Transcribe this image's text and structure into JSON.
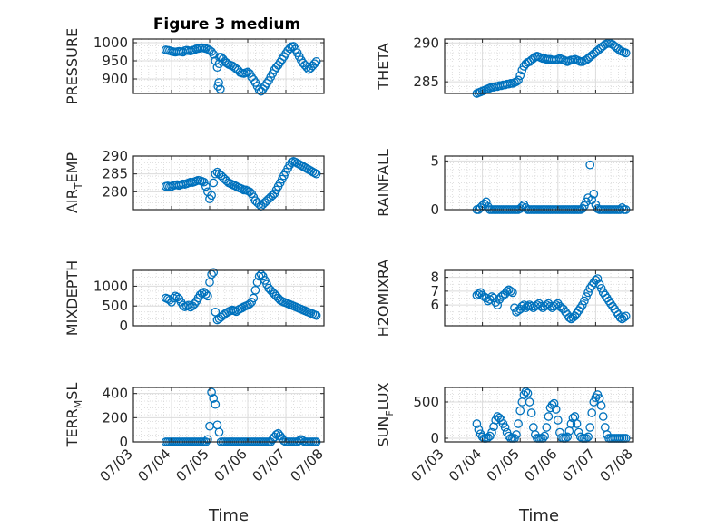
{
  "title": "Figure 3 medium",
  "marker_color": "#0072BD",
  "chart_data": [
    {
      "type": "scatter",
      "ylabel": "PRESSURE",
      "ylim": [
        860,
        1010
      ],
      "yticks": [
        900,
        950,
        1000
      ],
      "xlim": [
        0,
        5
      ],
      "grid": true,
      "x": [
        0.85,
        0.9,
        0.95,
        1,
        1.05,
        1.1,
        1.15,
        1.2,
        1.25,
        1.3,
        1.35,
        1.4,
        1.45,
        1.5,
        1.55,
        1.6,
        1.65,
        1.7,
        1.75,
        1.8,
        1.85,
        1.9,
        1.95,
        2,
        2.05,
        2.1,
        2.15,
        2.2,
        2.25,
        2.3,
        2.35,
        2.4,
        2.45,
        2.5,
        2.55,
        2.6,
        2.65,
        2.7,
        2.75,
        2.8,
        2.85,
        2.9,
        2.95,
        3,
        3.05,
        3.1,
        3.15,
        3.2,
        3.25,
        3.3,
        3.35,
        3.4,
        3.45,
        3.5,
        3.55,
        3.6,
        3.65,
        3.7,
        3.75,
        3.8,
        3.85,
        3.9,
        3.95,
        4,
        4.05,
        4.1,
        4.15,
        4.2,
        4.25,
        4.3,
        4.35,
        4.4,
        4.45,
        4.5,
        4.55,
        4.6,
        4.65,
        4.7,
        4.75,
        4.8,
        2.22,
        2.24,
        2.26,
        2.28
      ],
      "y": [
        980,
        979,
        978,
        976,
        975,
        974,
        975,
        976,
        975,
        974,
        978,
        979,
        978,
        977,
        979,
        980,
        983,
        984,
        985,
        986,
        985,
        984,
        982,
        979,
        975,
        968,
        950,
        932,
        942,
        960,
        955,
        948,
        944,
        940,
        938,
        936,
        932,
        928,
        924,
        918,
        916,
        915,
        917,
        919,
        915,
        905,
        898,
        890,
        880,
        870,
        866,
        872,
        880,
        888,
        895,
        905,
        915,
        925,
        932,
        938,
        946,
        954,
        962,
        970,
        978,
        984,
        989,
        990,
        982,
        972,
        962,
        952,
        944,
        938,
        932,
        926,
        930,
        936,
        942,
        948,
        880,
        890,
        960,
        872
      ],
      "xticks_note": "07/03..07/08"
    },
    {
      "type": "scatter",
      "ylabel": "THETA",
      "ylim": [
        283.5,
        290.5
      ],
      "yticks": [
        285,
        290
      ],
      "xlim": [
        0,
        5
      ],
      "grid": true,
      "x": [
        0.85,
        0.9,
        0.95,
        1,
        1.05,
        1.1,
        1.15,
        1.2,
        1.25,
        1.3,
        1.35,
        1.4,
        1.45,
        1.5,
        1.55,
        1.6,
        1.65,
        1.7,
        1.75,
        1.8,
        1.85,
        1.9,
        1.95,
        2,
        2.05,
        2.1,
        2.15,
        2.2,
        2.25,
        2.3,
        2.35,
        2.4,
        2.45,
        2.5,
        2.55,
        2.6,
        2.65,
        2.7,
        2.75,
        2.8,
        2.85,
        2.9,
        2.95,
        3,
        3.05,
        3.1,
        3.15,
        3.2,
        3.25,
        3.3,
        3.35,
        3.4,
        3.45,
        3.5,
        3.55,
        3.6,
        3.65,
        3.7,
        3.75,
        3.8,
        3.85,
        3.9,
        3.95,
        4,
        4.05,
        4.1,
        4.15,
        4.2,
        4.25,
        4.3,
        4.35,
        4.4,
        4.45,
        4.5,
        4.55,
        4.6,
        4.65,
        4.7,
        4.75,
        4.8
      ],
      "y": [
        283.5,
        283.6,
        283.7,
        283.8,
        283.9,
        284,
        284.1,
        284.2,
        284.3,
        284.3,
        284.4,
        284.4,
        284.5,
        284.5,
        284.6,
        284.6,
        284.7,
        284.7,
        284.8,
        284.8,
        284.9,
        285,
        285.2,
        285.8,
        286.5,
        287,
        287.3,
        287.5,
        287.6,
        287.8,
        288,
        288.2,
        288.3,
        288.2,
        288.1,
        288,
        288,
        287.9,
        287.9,
        287.9,
        287.8,
        287.8,
        287.8,
        287.9,
        288,
        287.9,
        287.8,
        287.7,
        287.6,
        287.7,
        287.8,
        287.8,
        287.9,
        287.8,
        287.7,
        287.6,
        287.6,
        287.7,
        287.8,
        288,
        288.2,
        288.4,
        288.6,
        288.8,
        289,
        289.2,
        289.4,
        289.6,
        289.8,
        289.9,
        290,
        289.9,
        289.8,
        289.6,
        289.4,
        289.2,
        289,
        288.9,
        288.8,
        288.7
      ]
    },
    {
      "type": "scatter",
      "ylabel": "AIR_TEMP",
      "ylabel_main": "AIR",
      "ylabel_sub": "T",
      "ylabel_rest": "EMP",
      "ylim": [
        275,
        290
      ],
      "yticks": [
        280,
        285,
        290
      ],
      "xlim": [
        0,
        5
      ],
      "grid": true,
      "x": [
        0.85,
        0.9,
        0.95,
        1,
        1.05,
        1.1,
        1.15,
        1.2,
        1.25,
        1.3,
        1.35,
        1.4,
        1.45,
        1.5,
        1.55,
        1.6,
        1.65,
        1.7,
        1.75,
        1.8,
        1.85,
        1.9,
        1.95,
        2,
        2.05,
        2.1,
        2.15,
        2.2,
        2.25,
        2.3,
        2.35,
        2.4,
        2.45,
        2.5,
        2.55,
        2.6,
        2.65,
        2.7,
        2.75,
        2.8,
        2.85,
        2.9,
        2.95,
        3,
        3.05,
        3.1,
        3.15,
        3.2,
        3.25,
        3.3,
        3.35,
        3.4,
        3.45,
        3.5,
        3.55,
        3.6,
        3.65,
        3.7,
        3.75,
        3.8,
        3.85,
        3.9,
        3.95,
        4,
        4.05,
        4.1,
        4.15,
        4.2,
        4.25,
        4.3,
        4.35,
        4.4,
        4.45,
        4.5,
        4.55,
        4.6,
        4.65,
        4.7,
        4.75,
        4.8
      ],
      "y": [
        281.5,
        281.6,
        281.4,
        281.5,
        281.8,
        281.9,
        282,
        281.8,
        282,
        282.2,
        282.1,
        282.3,
        282.5,
        282.7,
        282.6,
        282.8,
        283,
        283.2,
        283.1,
        282.9,
        282.7,
        281.5,
        280,
        278,
        279,
        282.5,
        285,
        285.5,
        285,
        284.5,
        284,
        283.5,
        283,
        282.5,
        282.3,
        282,
        281.8,
        281.5,
        281.2,
        281,
        280.8,
        280.5,
        280.5,
        280.3,
        280,
        279.5,
        278.5,
        277.5,
        277,
        276.5,
        276,
        276.5,
        277,
        277.5,
        278,
        278.5,
        279,
        279.5,
        280.5,
        281.5,
        282.5,
        283.5,
        284.5,
        285.5,
        286.5,
        287.5,
        288.2,
        288.5,
        288.3,
        288,
        287.7,
        287.4,
        287.1,
        286.8,
        286.5,
        286.2,
        285.9,
        285.6,
        285.3,
        285
      ]
    },
    {
      "type": "scatter",
      "ylabel": "RAINFALL",
      "ylim": [
        0,
        5.5
      ],
      "yticks": [
        0,
        5
      ],
      "xlim": [
        0,
        5
      ],
      "grid": true,
      "x": [
        0.85,
        0.9,
        0.95,
        1,
        1.05,
        1.1,
        1.15,
        1.2,
        1.25,
        1.3,
        1.35,
        1.4,
        1.45,
        1.5,
        1.55,
        1.6,
        1.65,
        1.7,
        1.75,
        1.8,
        1.85,
        1.9,
        1.95,
        2,
        2.05,
        2.1,
        2.15,
        2.2,
        2.25,
        2.3,
        2.35,
        2.4,
        2.45,
        2.5,
        2.55,
        2.6,
        2.65,
        2.7,
        2.75,
        2.8,
        2.85,
        2.9,
        2.95,
        3,
        3.05,
        3.1,
        3.15,
        3.2,
        3.25,
        3.3,
        3.35,
        3.4,
        3.45,
        3.5,
        3.55,
        3.6,
        3.65,
        3.7,
        3.75,
        3.8,
        3.85,
        3.9,
        3.95,
        4,
        4.05,
        4.1,
        4.15,
        4.2,
        4.25,
        4.3,
        4.35,
        4.4,
        4.45,
        4.5,
        4.55,
        4.6,
        4.65,
        4.7,
        4.75,
        4.8
      ],
      "y": [
        0,
        0,
        0.2,
        0.4,
        0.6,
        0.8,
        0.3,
        0,
        0,
        0,
        0,
        0,
        0,
        0,
        0,
        0,
        0,
        0,
        0,
        0,
        0,
        0,
        0,
        0.1,
        0.3,
        0.5,
        0.2,
        0,
        0,
        0,
        0,
        0,
        0,
        0,
        0,
        0,
        0,
        0,
        0,
        0,
        0,
        0,
        0,
        0,
        0,
        0,
        0,
        0,
        0,
        0,
        0,
        0,
        0,
        0,
        0,
        0,
        0.1,
        0.4,
        0.8,
        1.2,
        4.6,
        1,
        1.6,
        0.5,
        0.1,
        0,
        0,
        0,
        0,
        0,
        0,
        0,
        0,
        0,
        0,
        0,
        0,
        0.2,
        0,
        0
      ]
    },
    {
      "type": "scatter",
      "ylabel": "MIXDEPTH",
      "ylim": [
        0,
        1400
      ],
      "yticks": [
        0,
        500,
        1000
      ],
      "xlim": [
        0,
        5
      ],
      "grid": true,
      "x": [
        0.85,
        0.9,
        0.95,
        1,
        1.05,
        1.1,
        1.15,
        1.2,
        1.25,
        1.3,
        1.35,
        1.4,
        1.45,
        1.5,
        1.55,
        1.6,
        1.65,
        1.7,
        1.75,
        1.8,
        1.85,
        1.9,
        1.95,
        2,
        2.05,
        2.1,
        2.15,
        2.2,
        2.25,
        2.3,
        2.35,
        2.4,
        2.45,
        2.5,
        2.55,
        2.6,
        2.65,
        2.7,
        2.75,
        2.8,
        2.85,
        2.9,
        2.95,
        3,
        3.05,
        3.1,
        3.15,
        3.2,
        3.25,
        3.3,
        3.35,
        3.4,
        3.45,
        3.5,
        3.55,
        3.6,
        3.65,
        3.7,
        3.75,
        3.8,
        3.85,
        3.9,
        3.95,
        4,
        4.05,
        4.1,
        4.15,
        4.2,
        4.25,
        4.3,
        4.35,
        4.4,
        4.45,
        4.5,
        4.55,
        4.6,
        4.65,
        4.7,
        4.75,
        4.8
      ],
      "y": [
        700,
        680,
        650,
        600,
        700,
        750,
        720,
        680,
        600,
        520,
        480,
        500,
        520,
        470,
        500,
        550,
        620,
        700,
        780,
        820,
        850,
        800,
        750,
        1100,
        1300,
        1350,
        350,
        150,
        180,
        220,
        260,
        300,
        330,
        360,
        380,
        400,
        380,
        360,
        400,
        430,
        450,
        480,
        500,
        520,
        550,
        600,
        700,
        900,
        1100,
        1250,
        1300,
        1250,
        1150,
        1050,
        950,
        900,
        850,
        800,
        750,
        700,
        650,
        620,
        600,
        580,
        560,
        540,
        520,
        500,
        480,
        460,
        440,
        420,
        400,
        380,
        360,
        340,
        320,
        300,
        280,
        260
      ]
    },
    {
      "type": "scatter",
      "ylabel": "H2OMIXRA",
      "ylim": [
        4.5,
        8.5
      ],
      "yticks": [
        6,
        7,
        8
      ],
      "xlim": [
        0,
        5
      ],
      "grid": true,
      "x": [
        0.85,
        0.9,
        0.95,
        1,
        1.05,
        1.1,
        1.15,
        1.2,
        1.25,
        1.3,
        1.35,
        1.4,
        1.45,
        1.5,
        1.55,
        1.6,
        1.65,
        1.7,
        1.75,
        1.8,
        1.85,
        1.9,
        1.95,
        2,
        2.05,
        2.1,
        2.15,
        2.2,
        2.25,
        2.3,
        2.35,
        2.4,
        2.45,
        2.5,
        2.55,
        2.6,
        2.65,
        2.7,
        2.75,
        2.8,
        2.85,
        2.9,
        2.95,
        3,
        3.05,
        3.1,
        3.15,
        3.2,
        3.25,
        3.3,
        3.35,
        3.4,
        3.45,
        3.5,
        3.55,
        3.6,
        3.65,
        3.7,
        3.75,
        3.8,
        3.85,
        3.9,
        3.95,
        4,
        4.05,
        4.1,
        4.15,
        4.2,
        4.25,
        4.3,
        4.35,
        4.4,
        4.45,
        4.5,
        4.55,
        4.6,
        4.65,
        4.7,
        4.75,
        4.8
      ],
      "y": [
        6.7,
        6.8,
        6.9,
        6.7,
        6.6,
        6.5,
        6.3,
        6.4,
        6.6,
        6.5,
        6.2,
        6,
        6.4,
        6.6,
        6.7,
        6.8,
        7,
        7.1,
        7,
        6.9,
        5.8,
        5.5,
        5.6,
        5.7,
        5.9,
        6,
        5.8,
        5.9,
        6,
        5.9,
        5.8,
        5.9,
        6,
        6.1,
        5.9,
        5.8,
        5.9,
        6,
        6.1,
        5.9,
        5.8,
        5.9,
        6,
        6.1,
        5.9,
        5.8,
        5.7,
        5.5,
        5.3,
        5.1,
        5,
        5.1,
        5.2,
        5.4,
        5.6,
        5.8,
        6,
        6.3,
        6.6,
        6.9,
        7.2,
        7.4,
        7.6,
        7.8,
        7.9,
        7.5,
        7.2,
        6.9,
        6.7,
        6.5,
        6.3,
        6.1,
        5.9,
        5.7,
        5.5,
        5.3,
        5.1,
        5,
        5.1,
        5.2
      ]
    },
    {
      "type": "scatter",
      "ylabel": "TERR_MSL",
      "ylabel_main": "TERR",
      "ylabel_sub": "M",
      "ylabel_rest": "SL",
      "ylim": [
        0,
        450
      ],
      "yticks": [
        0,
        200,
        400
      ],
      "xlim": [
        0,
        5
      ],
      "grid": true,
      "x": [
        0.85,
        0.9,
        0.95,
        1,
        1.05,
        1.1,
        1.15,
        1.2,
        1.25,
        1.3,
        1.35,
        1.4,
        1.45,
        1.5,
        1.55,
        1.6,
        1.65,
        1.7,
        1.75,
        1.8,
        1.85,
        1.9,
        1.95,
        2,
        2.05,
        2.1,
        2.15,
        2.2,
        2.25,
        2.3,
        2.35,
        2.4,
        2.45,
        2.5,
        2.55,
        2.6,
        2.65,
        2.7,
        2.75,
        2.8,
        2.85,
        2.9,
        2.95,
        3,
        3.05,
        3.1,
        3.15,
        3.2,
        3.25,
        3.3,
        3.35,
        3.4,
        3.45,
        3.5,
        3.55,
        3.6,
        3.65,
        3.7,
        3.75,
        3.8,
        3.85,
        3.9,
        3.95,
        4,
        4.05,
        4.1,
        4.15,
        4.2,
        4.25,
        4.3,
        4.35,
        4.4,
        4.45,
        4.5,
        4.55,
        4.6,
        4.65,
        4.7,
        4.75,
        4.8
      ],
      "y": [
        0,
        0,
        0,
        0,
        0,
        0,
        0,
        0,
        0,
        0,
        0,
        0,
        0,
        0,
        0,
        0,
        0,
        0,
        0,
        0,
        0,
        0,
        20,
        130,
        410,
        360,
        310,
        140,
        80,
        0,
        0,
        0,
        0,
        0,
        0,
        0,
        0,
        0,
        0,
        0,
        0,
        0,
        0,
        0,
        0,
        0,
        0,
        0,
        0,
        0,
        0,
        0,
        0,
        0,
        0,
        0,
        20,
        40,
        60,
        70,
        50,
        30,
        10,
        0,
        0,
        0,
        0,
        0,
        0,
        0,
        10,
        20,
        10,
        0,
        0,
        0,
        0,
        0,
        0,
        0
      ]
    },
    {
      "type": "scatter",
      "ylabel": "SUN_FLUX",
      "ylabel_main": "SUN",
      "ylabel_sub": "F",
      "ylabel_rest": "LUX",
      "ylim": [
        -50,
        700
      ],
      "yticks": [
        0,
        500
      ],
      "xlim": [
        0,
        5
      ],
      "grid": true,
      "x": [
        0.85,
        0.9,
        0.95,
        1,
        1.05,
        1.1,
        1.15,
        1.2,
        1.25,
        1.3,
        1.35,
        1.4,
        1.45,
        1.5,
        1.55,
        1.6,
        1.65,
        1.7,
        1.75,
        1.8,
        1.85,
        1.9,
        1.95,
        2,
        2.05,
        2.1,
        2.15,
        2.2,
        2.25,
        2.3,
        2.35,
        2.4,
        2.45,
        2.5,
        2.55,
        2.6,
        2.65,
        2.7,
        2.75,
        2.8,
        2.85,
        2.9,
        2.95,
        3,
        3.05,
        3.1,
        3.15,
        3.2,
        3.25,
        3.3,
        3.35,
        3.4,
        3.45,
        3.5,
        3.55,
        3.6,
        3.65,
        3.7,
        3.75,
        3.8,
        3.85,
        3.9,
        3.95,
        4,
        4.05,
        4.1,
        4.15,
        4.2,
        4.25,
        4.3,
        4.35,
        4.4,
        4.45,
        4.5,
        4.55,
        4.6,
        4.65,
        4.7,
        4.75,
        4.8
      ],
      "y": [
        200,
        120,
        60,
        20,
        0,
        0,
        10,
        30,
        80,
        160,
        250,
        300,
        280,
        250,
        200,
        150,
        80,
        30,
        0,
        0,
        0,
        50,
        200,
        380,
        500,
        600,
        640,
        620,
        500,
        350,
        150,
        50,
        0,
        0,
        0,
        0,
        30,
        150,
        300,
        420,
        460,
        480,
        400,
        250,
        80,
        10,
        0,
        0,
        20,
        100,
        200,
        280,
        300,
        200,
        80,
        20,
        0,
        0,
        0,
        20,
        150,
        350,
        500,
        560,
        600,
        550,
        450,
        300,
        150,
        50,
        0,
        0,
        0,
        0,
        0,
        0,
        0,
        0,
        0,
        0
      ]
    }
  ],
  "xticks": [
    "07/03",
    "07/04",
    "07/05",
    "07/06",
    "07/07",
    "07/08"
  ],
  "xlabel": "Time"
}
